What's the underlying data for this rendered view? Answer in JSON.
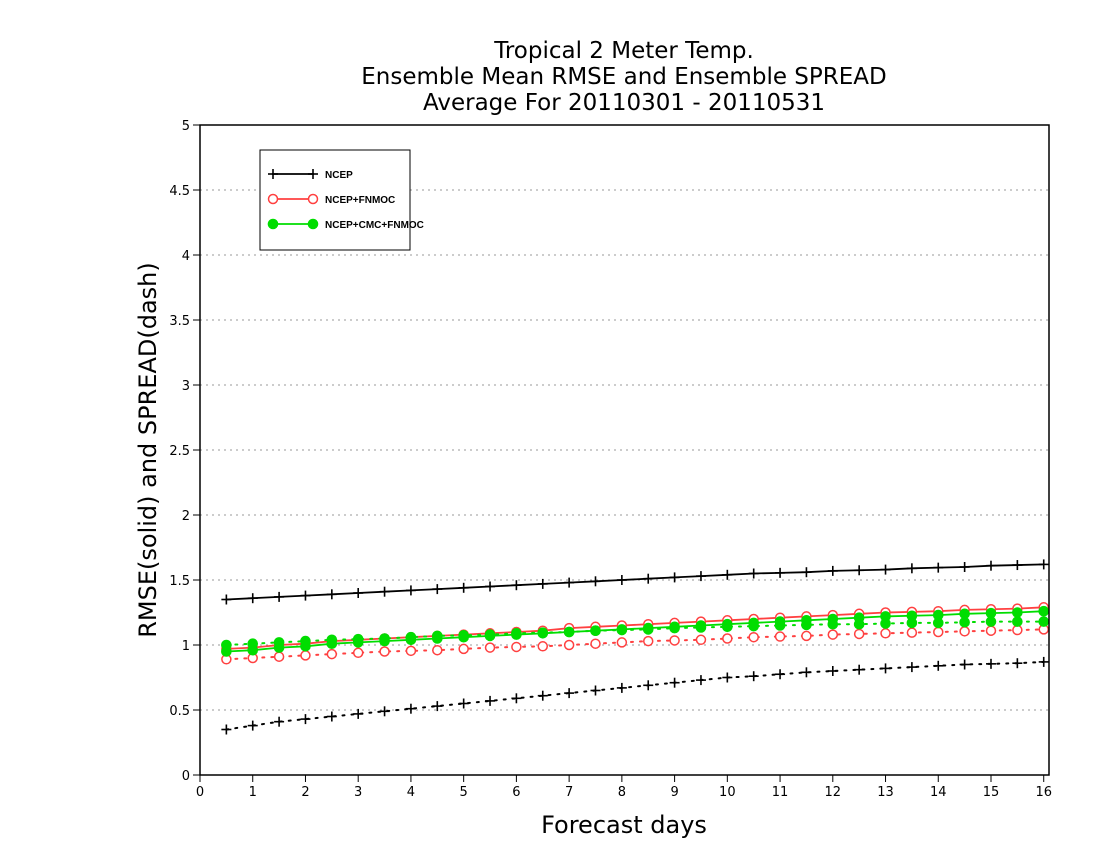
{
  "chart_data": {
    "type": "line",
    "title_lines": [
      "Tropical 2 Meter Temp.",
      "Ensemble Mean RMSE and Ensemble SPREAD",
      "Average For 20110301 - 20110531"
    ],
    "xlabel": "Forecast days",
    "ylabel": "RMSE(solid) and SPREAD(dash)",
    "xlim": [
      0,
      16.1
    ],
    "ylim": [
      0,
      5
    ],
    "xticks": [
      0,
      1,
      2,
      3,
      4,
      5,
      6,
      7,
      8,
      9,
      10,
      11,
      12,
      13,
      14,
      15,
      16
    ],
    "yticks": [
      0,
      0.5,
      1,
      1.5,
      2,
      2.5,
      3,
      3.5,
      4,
      4.5,
      5
    ],
    "ytick_labels": [
      "0",
      "0.5",
      "1",
      "1.5",
      "2",
      "2.5",
      "3",
      "3.5",
      "4",
      "4.5",
      "5"
    ],
    "grid": "horizontal dotted",
    "legend_position": "top-left",
    "x": [
      0.5,
      1,
      1.5,
      2,
      2.5,
      3,
      3.5,
      4,
      4.5,
      5,
      5.5,
      6,
      6.5,
      7,
      7.5,
      8,
      8.5,
      9,
      9.5,
      10,
      10.5,
      11,
      11.5,
      12,
      12.5,
      13,
      13.5,
      14,
      14.5,
      15,
      15.5,
      16
    ],
    "series": [
      {
        "name": "NCEP",
        "color": "#000000",
        "marker": "plus",
        "rmse": [
          1.35,
          1.36,
          1.37,
          1.38,
          1.39,
          1.4,
          1.41,
          1.42,
          1.43,
          1.44,
          1.45,
          1.46,
          1.47,
          1.48,
          1.49,
          1.5,
          1.51,
          1.52,
          1.53,
          1.54,
          1.55,
          1.555,
          1.56,
          1.57,
          1.575,
          1.58,
          1.59,
          1.595,
          1.6,
          1.61,
          1.615,
          1.62
        ],
        "spread": [
          0.35,
          0.38,
          0.41,
          0.43,
          0.45,
          0.47,
          0.49,
          0.51,
          0.53,
          0.55,
          0.57,
          0.59,
          0.61,
          0.63,
          0.65,
          0.67,
          0.69,
          0.71,
          0.73,
          0.75,
          0.76,
          0.775,
          0.79,
          0.8,
          0.81,
          0.82,
          0.83,
          0.84,
          0.85,
          0.855,
          0.86,
          0.87
        ]
      },
      {
        "name": "NCEP+FNMOC",
        "color": "#ff4040",
        "marker": "open-circle",
        "rmse": [
          0.97,
          0.98,
          1.0,
          1.01,
          1.03,
          1.04,
          1.05,
          1.06,
          1.07,
          1.08,
          1.09,
          1.1,
          1.11,
          1.13,
          1.14,
          1.15,
          1.16,
          1.17,
          1.18,
          1.19,
          1.2,
          1.21,
          1.22,
          1.23,
          1.24,
          1.25,
          1.255,
          1.26,
          1.27,
          1.275,
          1.28,
          1.29
        ],
        "spread": [
          0.89,
          0.9,
          0.91,
          0.92,
          0.93,
          0.94,
          0.95,
          0.955,
          0.96,
          0.97,
          0.98,
          0.985,
          0.99,
          1.0,
          1.01,
          1.02,
          1.03,
          1.035,
          1.04,
          1.05,
          1.06,
          1.065,
          1.07,
          1.08,
          1.085,
          1.09,
          1.095,
          1.1,
          1.105,
          1.11,
          1.115,
          1.12
        ]
      },
      {
        "name": "NCEP+CMC+FNMOC",
        "color": "#00dd00",
        "marker": "filled-circle",
        "rmse": [
          0.95,
          0.96,
          0.98,
          0.99,
          1.01,
          1.02,
          1.03,
          1.04,
          1.05,
          1.06,
          1.07,
          1.08,
          1.09,
          1.1,
          1.11,
          1.12,
          1.13,
          1.14,
          1.15,
          1.16,
          1.17,
          1.18,
          1.19,
          1.2,
          1.21,
          1.22,
          1.225,
          1.23,
          1.24,
          1.245,
          1.25,
          1.26
        ],
        "spread": [
          1.0,
          1.01,
          1.02,
          1.03,
          1.04,
          1.045,
          1.05,
          1.06,
          1.07,
          1.075,
          1.08,
          1.09,
          1.095,
          1.1,
          1.11,
          1.115,
          1.12,
          1.13,
          1.135,
          1.14,
          1.145,
          1.15,
          1.155,
          1.16,
          1.16,
          1.165,
          1.17,
          1.17,
          1.175,
          1.18,
          1.18,
          1.18
        ]
      }
    ]
  }
}
